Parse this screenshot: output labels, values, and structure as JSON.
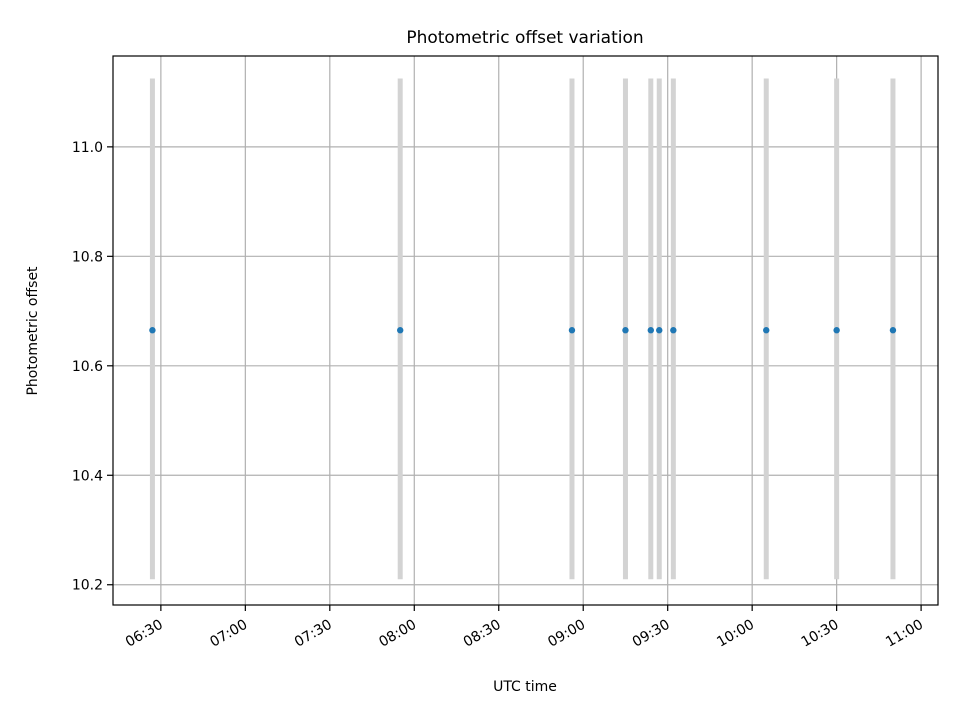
{
  "chart_data": {
    "type": "scatter",
    "title": "Photometric offset variation",
    "xlabel": "UTC time",
    "ylabel": "Photometric offset",
    "x_tick_labels": [
      "06:30",
      "07:00",
      "07:30",
      "08:00",
      "08:30",
      "09:00",
      "09:30",
      "10:00",
      "10:30",
      "11:00"
    ],
    "y_tick_labels": [
      "10.2",
      "10.4",
      "10.6",
      "10.8",
      "11.0"
    ],
    "x_ticks": [
      "06:30",
      "07:00",
      "07:30",
      "08:00",
      "08:30",
      "09:00",
      "09:30",
      "10:00",
      "10:30",
      "11:00"
    ],
    "y_ticks": [
      10.2,
      10.4,
      10.6,
      10.8,
      11.0
    ],
    "xlim": [
      "06:13",
      "11:06"
    ],
    "ylim": [
      10.163,
      11.166
    ],
    "grid": true,
    "legend": "none",
    "series": [
      {
        "x": [
          "06:27",
          "07:55",
          "08:56",
          "09:15",
          "09:24",
          "09:27",
          "09:32",
          "10:05",
          "10:30",
          "10:50"
        ],
        "y": [
          10.665,
          10.665,
          10.665,
          10.665,
          10.665,
          10.665,
          10.665,
          10.665,
          10.665,
          10.665
        ],
        "yerr_low": [
          10.21,
          10.21,
          10.21,
          10.21,
          10.21,
          10.21,
          10.21,
          10.21,
          10.21,
          10.21
        ],
        "yerr_high": [
          11.125,
          11.125,
          11.125,
          11.125,
          11.125,
          11.125,
          11.125,
          11.125,
          11.125,
          11.125
        ]
      }
    ],
    "colors": {
      "marker": "#1f77b4",
      "errorbar": "#d3d3d3",
      "grid": "#b0b0b0",
      "axes": "#000000"
    }
  }
}
